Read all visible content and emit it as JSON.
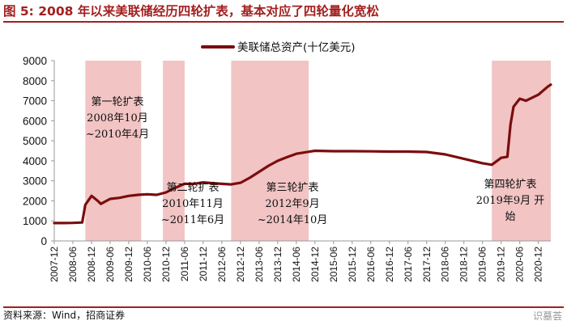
{
  "figure": {
    "title": "图 5:  2008 年以来美联储经历四轮扩表，基本对应了四轮量化宽松",
    "source": "资料来源：Wind，招商证券",
    "watermark": "识墓荟"
  },
  "colors": {
    "line": "#7b0d0d",
    "shade": "#f2c4c4",
    "accent": "#a31f1f",
    "axis": "#999999"
  },
  "chart_data": {
    "type": "line",
    "title": "",
    "xlabel": "",
    "ylabel": "",
    "ylim": [
      0,
      9000
    ],
    "yticks": [
      "0",
      "1000",
      "2000",
      "3000",
      "4000",
      "5000",
      "6000",
      "7000",
      "8000",
      "9000"
    ],
    "xticks": [
      "2007-12",
      "2008-06",
      "2008-12",
      "2009-06",
      "2009-12",
      "2010-06",
      "2010-12",
      "2011-06",
      "2011-12",
      "2012-06",
      "2012-12",
      "2013-06",
      "2013-12",
      "2014-06",
      "2014-12",
      "2015-06",
      "2015-12",
      "2016-06",
      "2016-12",
      "2017-06",
      "2017-12",
      "2018-06",
      "2018-12",
      "2019-06",
      "2019-12",
      "2020-06",
      "2020-12"
    ],
    "legend": {
      "position": "top-right"
    },
    "series": [
      {
        "name": "美联储总资产(十亿美元)",
        "points": [
          [
            "2007-12",
            890
          ],
          [
            "2008-03",
            890
          ],
          [
            "2008-06",
            900
          ],
          [
            "2008-09",
            920
          ],
          [
            "2008-10",
            1800
          ],
          [
            "2008-12",
            2250
          ],
          [
            "2009-02",
            2000
          ],
          [
            "2009-03",
            1850
          ],
          [
            "2009-06",
            2100
          ],
          [
            "2009-09",
            2150
          ],
          [
            "2009-12",
            2250
          ],
          [
            "2010-03",
            2300
          ],
          [
            "2010-06",
            2330
          ],
          [
            "2010-09",
            2300
          ],
          [
            "2010-12",
            2420
          ],
          [
            "2011-03",
            2650
          ],
          [
            "2011-06",
            2850
          ],
          [
            "2011-09",
            2850
          ],
          [
            "2011-12",
            2920
          ],
          [
            "2012-03",
            2880
          ],
          [
            "2012-06",
            2850
          ],
          [
            "2012-09",
            2820
          ],
          [
            "2012-12",
            2900
          ],
          [
            "2013-03",
            3150
          ],
          [
            "2013-06",
            3450
          ],
          [
            "2013-09",
            3750
          ],
          [
            "2013-12",
            4000
          ],
          [
            "2014-03",
            4180
          ],
          [
            "2014-06",
            4350
          ],
          [
            "2014-10",
            4450
          ],
          [
            "2014-12",
            4500
          ],
          [
            "2015-06",
            4480
          ],
          [
            "2015-12",
            4480
          ],
          [
            "2016-06",
            4470
          ],
          [
            "2016-12",
            4460
          ],
          [
            "2017-06",
            4460
          ],
          [
            "2017-12",
            4440
          ],
          [
            "2018-06",
            4320
          ],
          [
            "2018-12",
            4100
          ],
          [
            "2019-06",
            3880
          ],
          [
            "2019-09",
            3800
          ],
          [
            "2019-12",
            4150
          ],
          [
            "2020-02",
            4200
          ],
          [
            "2020-03",
            5800
          ],
          [
            "2020-04",
            6700
          ],
          [
            "2020-06",
            7100
          ],
          [
            "2020-08",
            7000
          ],
          [
            "2020-12",
            7300
          ],
          [
            "2021-03",
            7700
          ],
          [
            "2021-04",
            7800
          ]
        ]
      }
    ],
    "shaded_periods": [
      {
        "start": "2008-10",
        "end": "2010-04",
        "label_lines": [
          "第一轮扩表",
          "2008年10月",
          "~2010年4月"
        ]
      },
      {
        "start": "2010-11",
        "end": "2011-06",
        "label_lines": [
          "第二轮扩表",
          "2010年11月",
          "~2011年6月"
        ]
      },
      {
        "start": "2012-09",
        "end": "2014-10",
        "label_lines": [
          "第三轮扩表",
          "2012年9月",
          "~2014年10月"
        ]
      },
      {
        "start": "2019-09",
        "end": "2021-04",
        "label_lines": [
          "第四轮扩表",
          "2019年9月 开",
          "始"
        ]
      }
    ]
  }
}
